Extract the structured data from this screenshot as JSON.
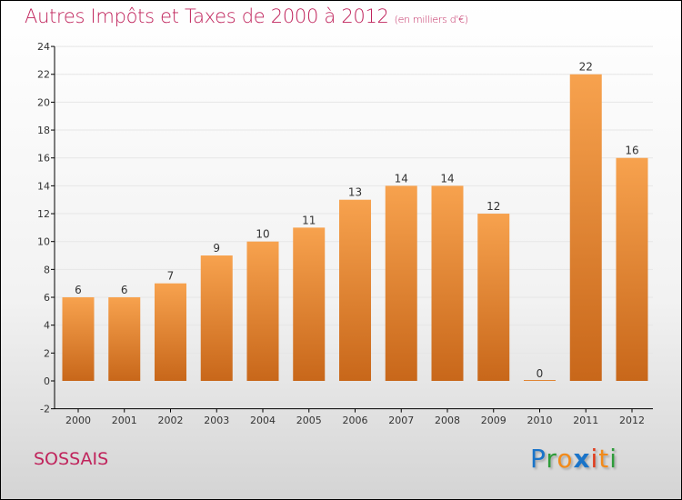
{
  "chart_data": {
    "type": "bar",
    "title": "Autres Impôts et Taxes de 2000 à 2012",
    "subtitle": "(en milliers d'€)",
    "categories": [
      "2000",
      "2001",
      "2002",
      "2003",
      "2004",
      "2005",
      "2006",
      "2007",
      "2008",
      "2009",
      "2010",
      "2011",
      "2012"
    ],
    "values": [
      6,
      6,
      7,
      9,
      10,
      11,
      13,
      14,
      14,
      12,
      0,
      22,
      16
    ],
    "ylim": [
      -2,
      24
    ],
    "yticks": [
      -2,
      0,
      2,
      4,
      6,
      8,
      10,
      12,
      14,
      16,
      18,
      20,
      22,
      24
    ],
    "xlabel": "",
    "ylabel": "",
    "bar_color_top": "#f7a24e",
    "bar_color_bottom": "#c8671a"
  },
  "town": "SOSSAIS",
  "logo": {
    "text": "Proxiti",
    "letters": [
      [
        "P",
        "#1a74c9"
      ],
      [
        "r",
        "#2e9c3a"
      ],
      [
        "o",
        "#f28a1a"
      ],
      [
        "x",
        "#1a74c9"
      ],
      [
        "i",
        "#e03a1a"
      ],
      [
        "t",
        "#f28a1a"
      ],
      [
        "i",
        "#2e9c3a"
      ]
    ]
  }
}
